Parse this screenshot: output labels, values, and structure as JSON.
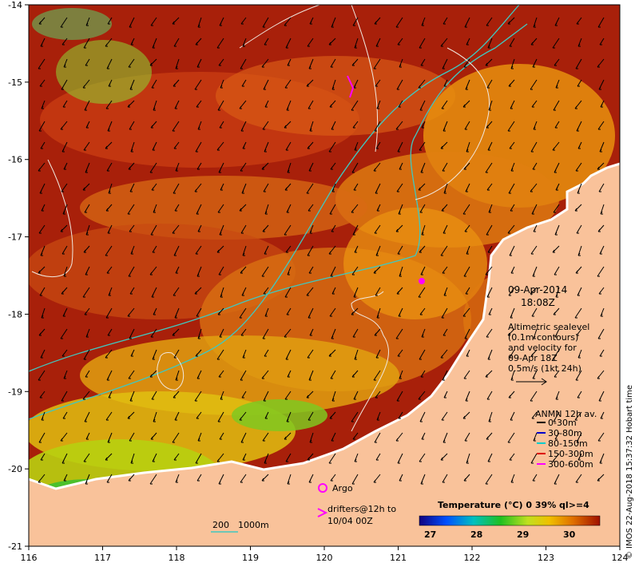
{
  "map": {
    "x_ticks": [
      "116",
      "117",
      "118",
      "119",
      "120",
      "121",
      "122",
      "123",
      "124"
    ],
    "y_ticks": [
      "-14",
      "-15",
      "-16",
      "-17",
      "-18",
      "-19",
      "-20",
      "-21"
    ],
    "xlim": [
      116,
      124
    ],
    "ylim": [
      -21,
      -14
    ]
  },
  "info": {
    "date": "09-Apr-2014",
    "time": "18:08Z",
    "sealevel_lines": [
      "Altimetric sealevel",
      "(0.1m contours)",
      "and velocity for",
      "09-Apr 18Z",
      "0.5m/s (1kt 24h)"
    ]
  },
  "depth_legend": {
    "title": "ANMN 12h av.",
    "items": [
      {
        "label": "0-30m",
        "color": "#000000"
      },
      {
        "label": "30-80m",
        "color": "#0000cc"
      },
      {
        "label": "80-150m",
        "color": "#00cccc"
      },
      {
        "label": "150-300m",
        "color": "#dd0000"
      },
      {
        "label": "300-600m",
        "color": "#ff00ff"
      }
    ]
  },
  "markers": {
    "argo_label": "Argo",
    "drifters_line1": "drifters@12h to",
    "drifters_line2": "10/04 00Z"
  },
  "bathy_legend": {
    "label1": "200",
    "label2": "1000m"
  },
  "colorbar": {
    "title": "Temperature (°C) 0 39% ql>=4",
    "ticks": [
      "27",
      "28",
      "29",
      "30"
    ]
  },
  "credit": "© IMOS 22-Aug-2018 15:37:32 Hobart time",
  "colors": {
    "land": "#f9c29a",
    "sea_warm": "#a01a00",
    "sea_mid": "#d2541a",
    "sea_orange": "#e8900e",
    "sea_cool": "#b8d010",
    "sea_green": "#30c030"
  }
}
